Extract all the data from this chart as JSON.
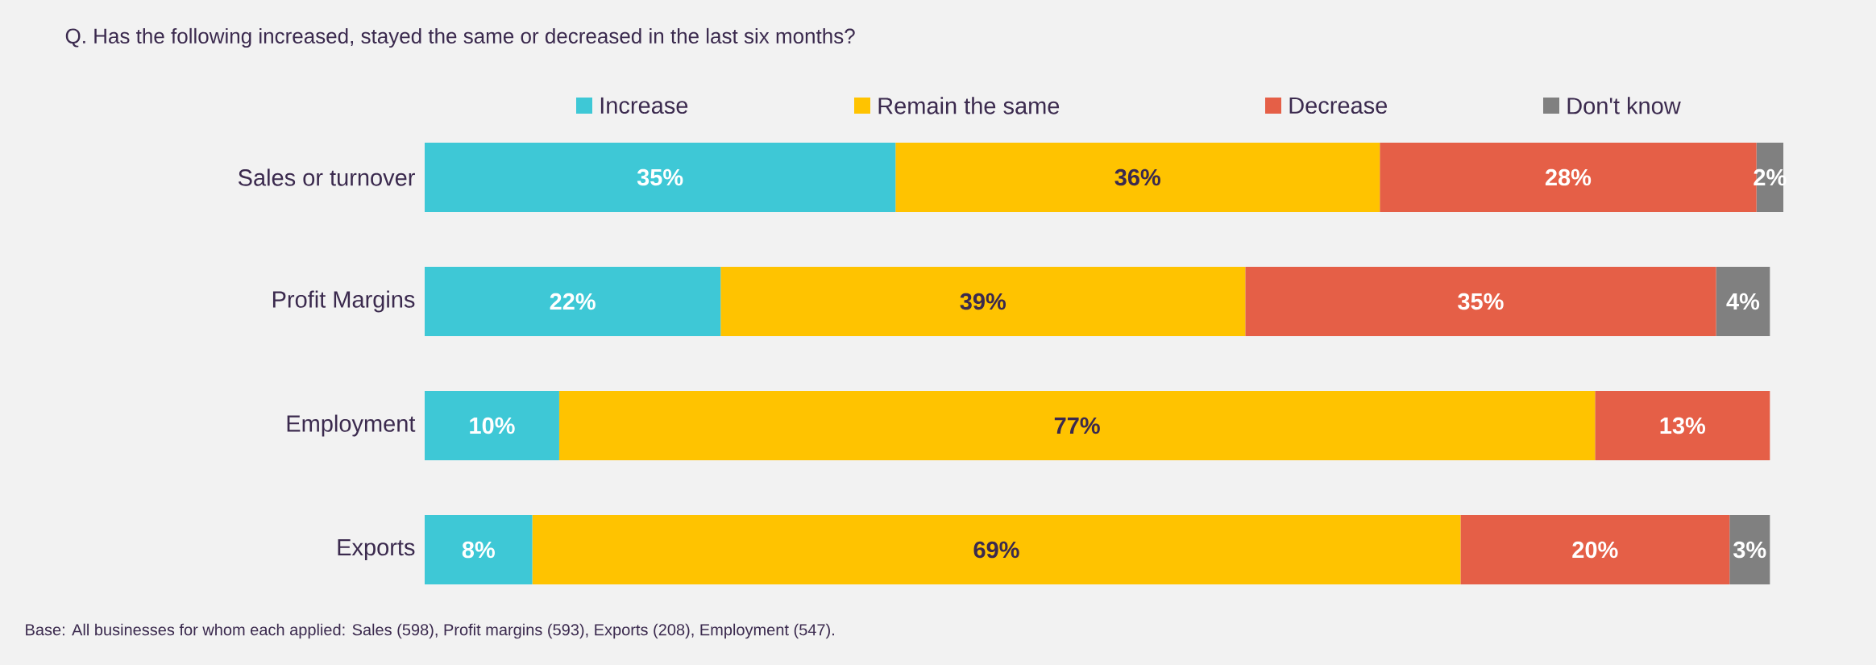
{
  "chart_data": {
    "type": "bar",
    "orientation": "horizontal",
    "stacked": true,
    "title": "Q. Has the following increased, stayed the same or decreased in the last six months?",
    "categories": [
      "Sales or turnover",
      "Profit Margins",
      "Employment",
      "Exports"
    ],
    "series": [
      {
        "name": "Increase",
        "color": "#3ec8d6",
        "values": [
          35,
          22,
          10,
          8
        ],
        "value_labels": [
          "35%",
          "22%",
          "10%",
          "8%"
        ]
      },
      {
        "name": "Remain the same",
        "color": "#ffc300",
        "values": [
          36,
          39,
          77,
          69
        ],
        "value_labels": [
          "36%",
          "39%",
          "77%",
          "69%"
        ]
      },
      {
        "name": "Decrease",
        "color": "#e55f47",
        "values": [
          28,
          35,
          13,
          20
        ],
        "value_labels": [
          "28%",
          "35%",
          "13%",
          "20%"
        ]
      },
      {
        "name": "Don't know",
        "color": "#808080",
        "values": [
          2,
          4,
          null,
          3
        ],
        "value_labels": [
          "2%",
          "4%",
          null,
          "3%"
        ]
      }
    ],
    "legend": "top",
    "annotations": [
      "Base: All businesses for whom each applied: Sales (598), Profit margins (593), Exports (208), Employment (547)."
    ]
  }
}
